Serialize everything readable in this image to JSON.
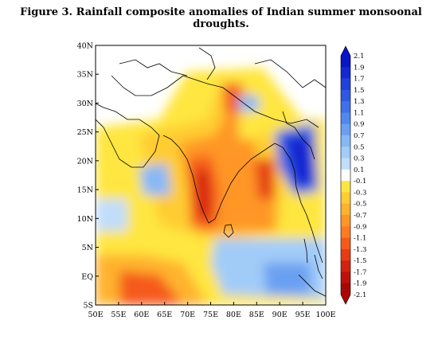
{
  "figure": {
    "caption": "Figure 3. Rainfall composite anomalies of Indian summer monsoonal droughts."
  },
  "map": {
    "lon_labels": [
      "50E",
      "55E",
      "60E",
      "65E",
      "70E",
      "75E",
      "80E",
      "85E",
      "90E",
      "95E",
      "100E"
    ],
    "lat_labels": [
      "40N",
      "35N",
      "30N",
      "25N",
      "20N",
      "15N",
      "10N",
      "5N",
      "EQ",
      "5S"
    ],
    "lon_range": [
      50,
      100
    ],
    "lat_range": [
      -5,
      40
    ]
  },
  "colorbar": {
    "labels": [
      "2.1",
      "1.9",
      "1.7",
      "1.5",
      "1.3",
      "1.1",
      "0.9",
      "0.7",
      "0.5",
      "0.3",
      "0.1",
      "-0.1",
      "-0.3",
      "-0.5",
      "-0.7",
      "-0.9",
      "-1.1",
      "-1.3",
      "-1.5",
      "-1.7",
      "-1.9",
      "-2.1"
    ],
    "colors": [
      "#0a14c8",
      "#1428d2",
      "#2040dc",
      "#3058e4",
      "#4070ea",
      "#5088ee",
      "#6aa0f2",
      "#86b8f6",
      "#a2ccf8",
      "#c0ddfa",
      "#ffffff",
      "#ffe640",
      "#ffcc33",
      "#ffb22e",
      "#ff9626",
      "#ff7a20",
      "#f55a1a",
      "#e63c14",
      "#d2230f",
      "#be110a",
      "#a80805"
    ]
  }
}
